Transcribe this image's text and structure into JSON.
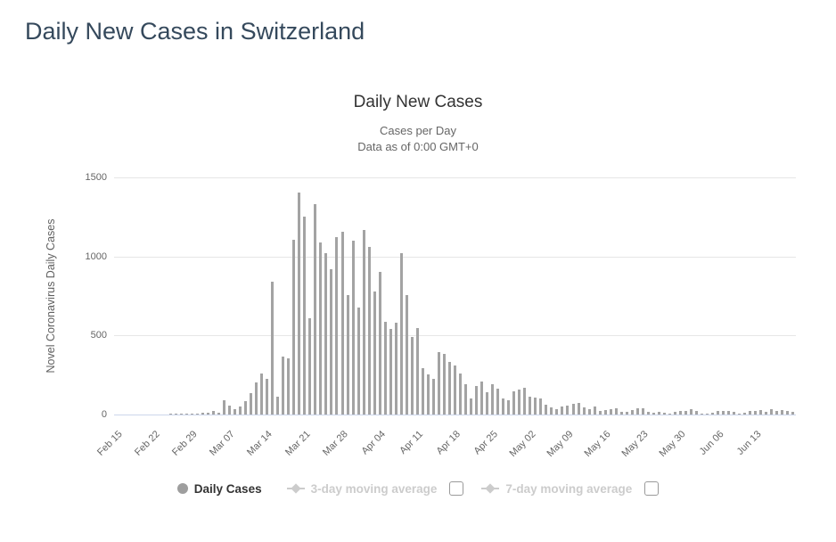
{
  "page": {
    "title": "Daily New Cases in Switzerland"
  },
  "chart": {
    "title": "Daily New Cases",
    "subtitle_line1": "Cases per Day",
    "subtitle_line2": "Data as of 0:00 GMT+0",
    "y_axis_title": "Novel Coronavirus Daily Cases"
  },
  "legend": {
    "daily_cases": "Daily Cases",
    "ma3": "3-day moving average",
    "ma7": "7-day moving average"
  },
  "colors": {
    "bar": "#a3a3a3",
    "title_text": "#35495c",
    "axis_text": "#666666",
    "gridline": "#e6e6e6",
    "axis_line": "#ccd6eb",
    "legend_active": "#333333",
    "legend_muted": "#cccccc"
  },
  "chart_data": {
    "type": "bar",
    "title": "Daily New Cases",
    "subtitle": "Cases per Day - Data as of 0:00 GMT+0",
    "ylabel": "Novel Coronavirus Daily Cases",
    "ylim": [
      0,
      1500
    ],
    "yticks": [
      0,
      500,
      1000,
      1500
    ],
    "grid": true,
    "legend_position": "bottom",
    "x_tick_labels": [
      "Feb 15",
      "Feb 22",
      "Feb 29",
      "Mar 07",
      "Mar 14",
      "Mar 21",
      "Mar 28",
      "Apr 04",
      "Apr 11",
      "Apr 18",
      "Apr 25",
      "May 02",
      "May 09",
      "May 16",
      "May 23",
      "May 30",
      "Jun 06",
      "Jun 13"
    ],
    "x": [
      "Feb 15",
      "Feb 16",
      "Feb 17",
      "Feb 18",
      "Feb 19",
      "Feb 20",
      "Feb 21",
      "Feb 22",
      "Feb 23",
      "Feb 24",
      "Feb 25",
      "Feb 26",
      "Feb 27",
      "Feb 28",
      "Feb 29",
      "Mar 01",
      "Mar 02",
      "Mar 03",
      "Mar 04",
      "Mar 05",
      "Mar 06",
      "Mar 07",
      "Mar 08",
      "Mar 09",
      "Mar 10",
      "Mar 11",
      "Mar 12",
      "Mar 13",
      "Mar 14",
      "Mar 15",
      "Mar 16",
      "Mar 17",
      "Mar 18",
      "Mar 19",
      "Mar 20",
      "Mar 21",
      "Mar 22",
      "Mar 23",
      "Mar 24",
      "Mar 25",
      "Mar 26",
      "Mar 27",
      "Mar 28",
      "Mar 29",
      "Mar 30",
      "Mar 31",
      "Apr 01",
      "Apr 02",
      "Apr 03",
      "Apr 04",
      "Apr 05",
      "Apr 06",
      "Apr 07",
      "Apr 08",
      "Apr 09",
      "Apr 10",
      "Apr 11",
      "Apr 12",
      "Apr 13",
      "Apr 14",
      "Apr 15",
      "Apr 16",
      "Apr 17",
      "Apr 18",
      "Apr 19",
      "Apr 20",
      "Apr 21",
      "Apr 22",
      "Apr 23",
      "Apr 24",
      "Apr 25",
      "Apr 26",
      "Apr 27",
      "Apr 28",
      "Apr 29",
      "Apr 30",
      "May 01",
      "May 02",
      "May 03",
      "May 04",
      "May 05",
      "May 06",
      "May 07",
      "May 08",
      "May 09",
      "May 10",
      "May 11",
      "May 12",
      "May 13",
      "May 14",
      "May 15",
      "May 16",
      "May 17",
      "May 18",
      "May 19",
      "May 20",
      "May 21",
      "May 22",
      "May 23",
      "May 24",
      "May 25",
      "May 26",
      "May 27",
      "May 28",
      "May 29",
      "May 30",
      "May 31",
      "Jun 01",
      "Jun 02",
      "Jun 03",
      "Jun 04",
      "Jun 05",
      "Jun 06",
      "Jun 07",
      "Jun 08",
      "Jun 09",
      "Jun 10",
      "Jun 11",
      "Jun 12",
      "Jun 13",
      "Jun 14",
      "Jun 15",
      "Jun 16",
      "Jun 17",
      "Jun 18",
      "Jun 19",
      "Jun 20"
    ],
    "values": [
      0,
      0,
      0,
      0,
      0,
      0,
      0,
      0,
      0,
      0,
      1,
      1,
      7,
      7,
      3,
      6,
      10,
      13,
      23,
      13,
      90,
      55,
      35,
      50,
      86,
      138,
      205,
      260,
      226,
      843,
      112,
      368,
      356,
      1106,
      1404,
      1252,
      608,
      1333,
      1087,
      1021,
      919,
      1125,
      1156,
      756,
      1098,
      679,
      1170,
      1060,
      779,
      904,
      587,
      541,
      583,
      1022,
      757,
      492,
      549,
      293,
      256,
      227,
      394,
      382,
      331,
      312,
      260,
      189,
      100,
      180,
      208,
      142,
      189,
      163,
      100,
      91,
      144,
      157,
      172,
      115,
      110,
      100,
      62,
      44,
      34,
      49,
      57,
      68,
      76,
      44,
      34,
      49,
      25,
      30,
      34,
      38,
      15,
      15,
      30,
      40,
      40,
      15,
      11,
      15,
      11,
      3,
      15,
      21,
      21,
      34,
      21,
      8,
      3,
      11,
      21,
      21,
      21,
      15,
      3,
      11,
      21,
      21,
      30,
      15,
      34,
      21,
      30,
      21,
      15
    ],
    "series": [
      {
        "name": "Daily Cases",
        "visible": true
      },
      {
        "name": "3-day moving average",
        "visible": false
      },
      {
        "name": "7-day moving average",
        "visible": false
      }
    ]
  }
}
